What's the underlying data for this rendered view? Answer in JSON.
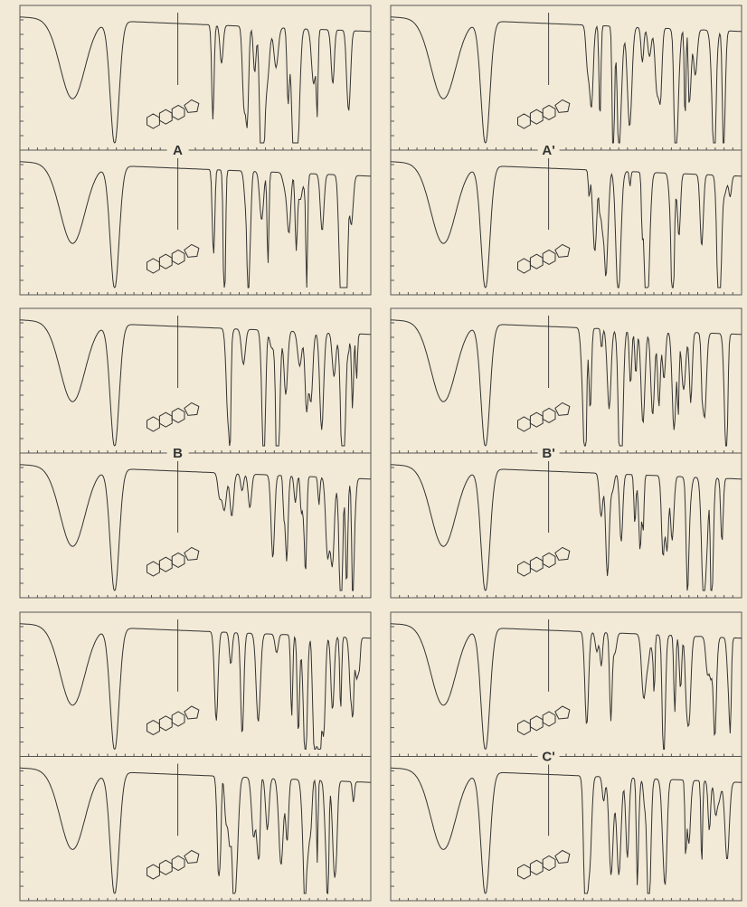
{
  "labels": [
    "A",
    "A'",
    "B",
    "B'",
    "C'"
  ]
}
